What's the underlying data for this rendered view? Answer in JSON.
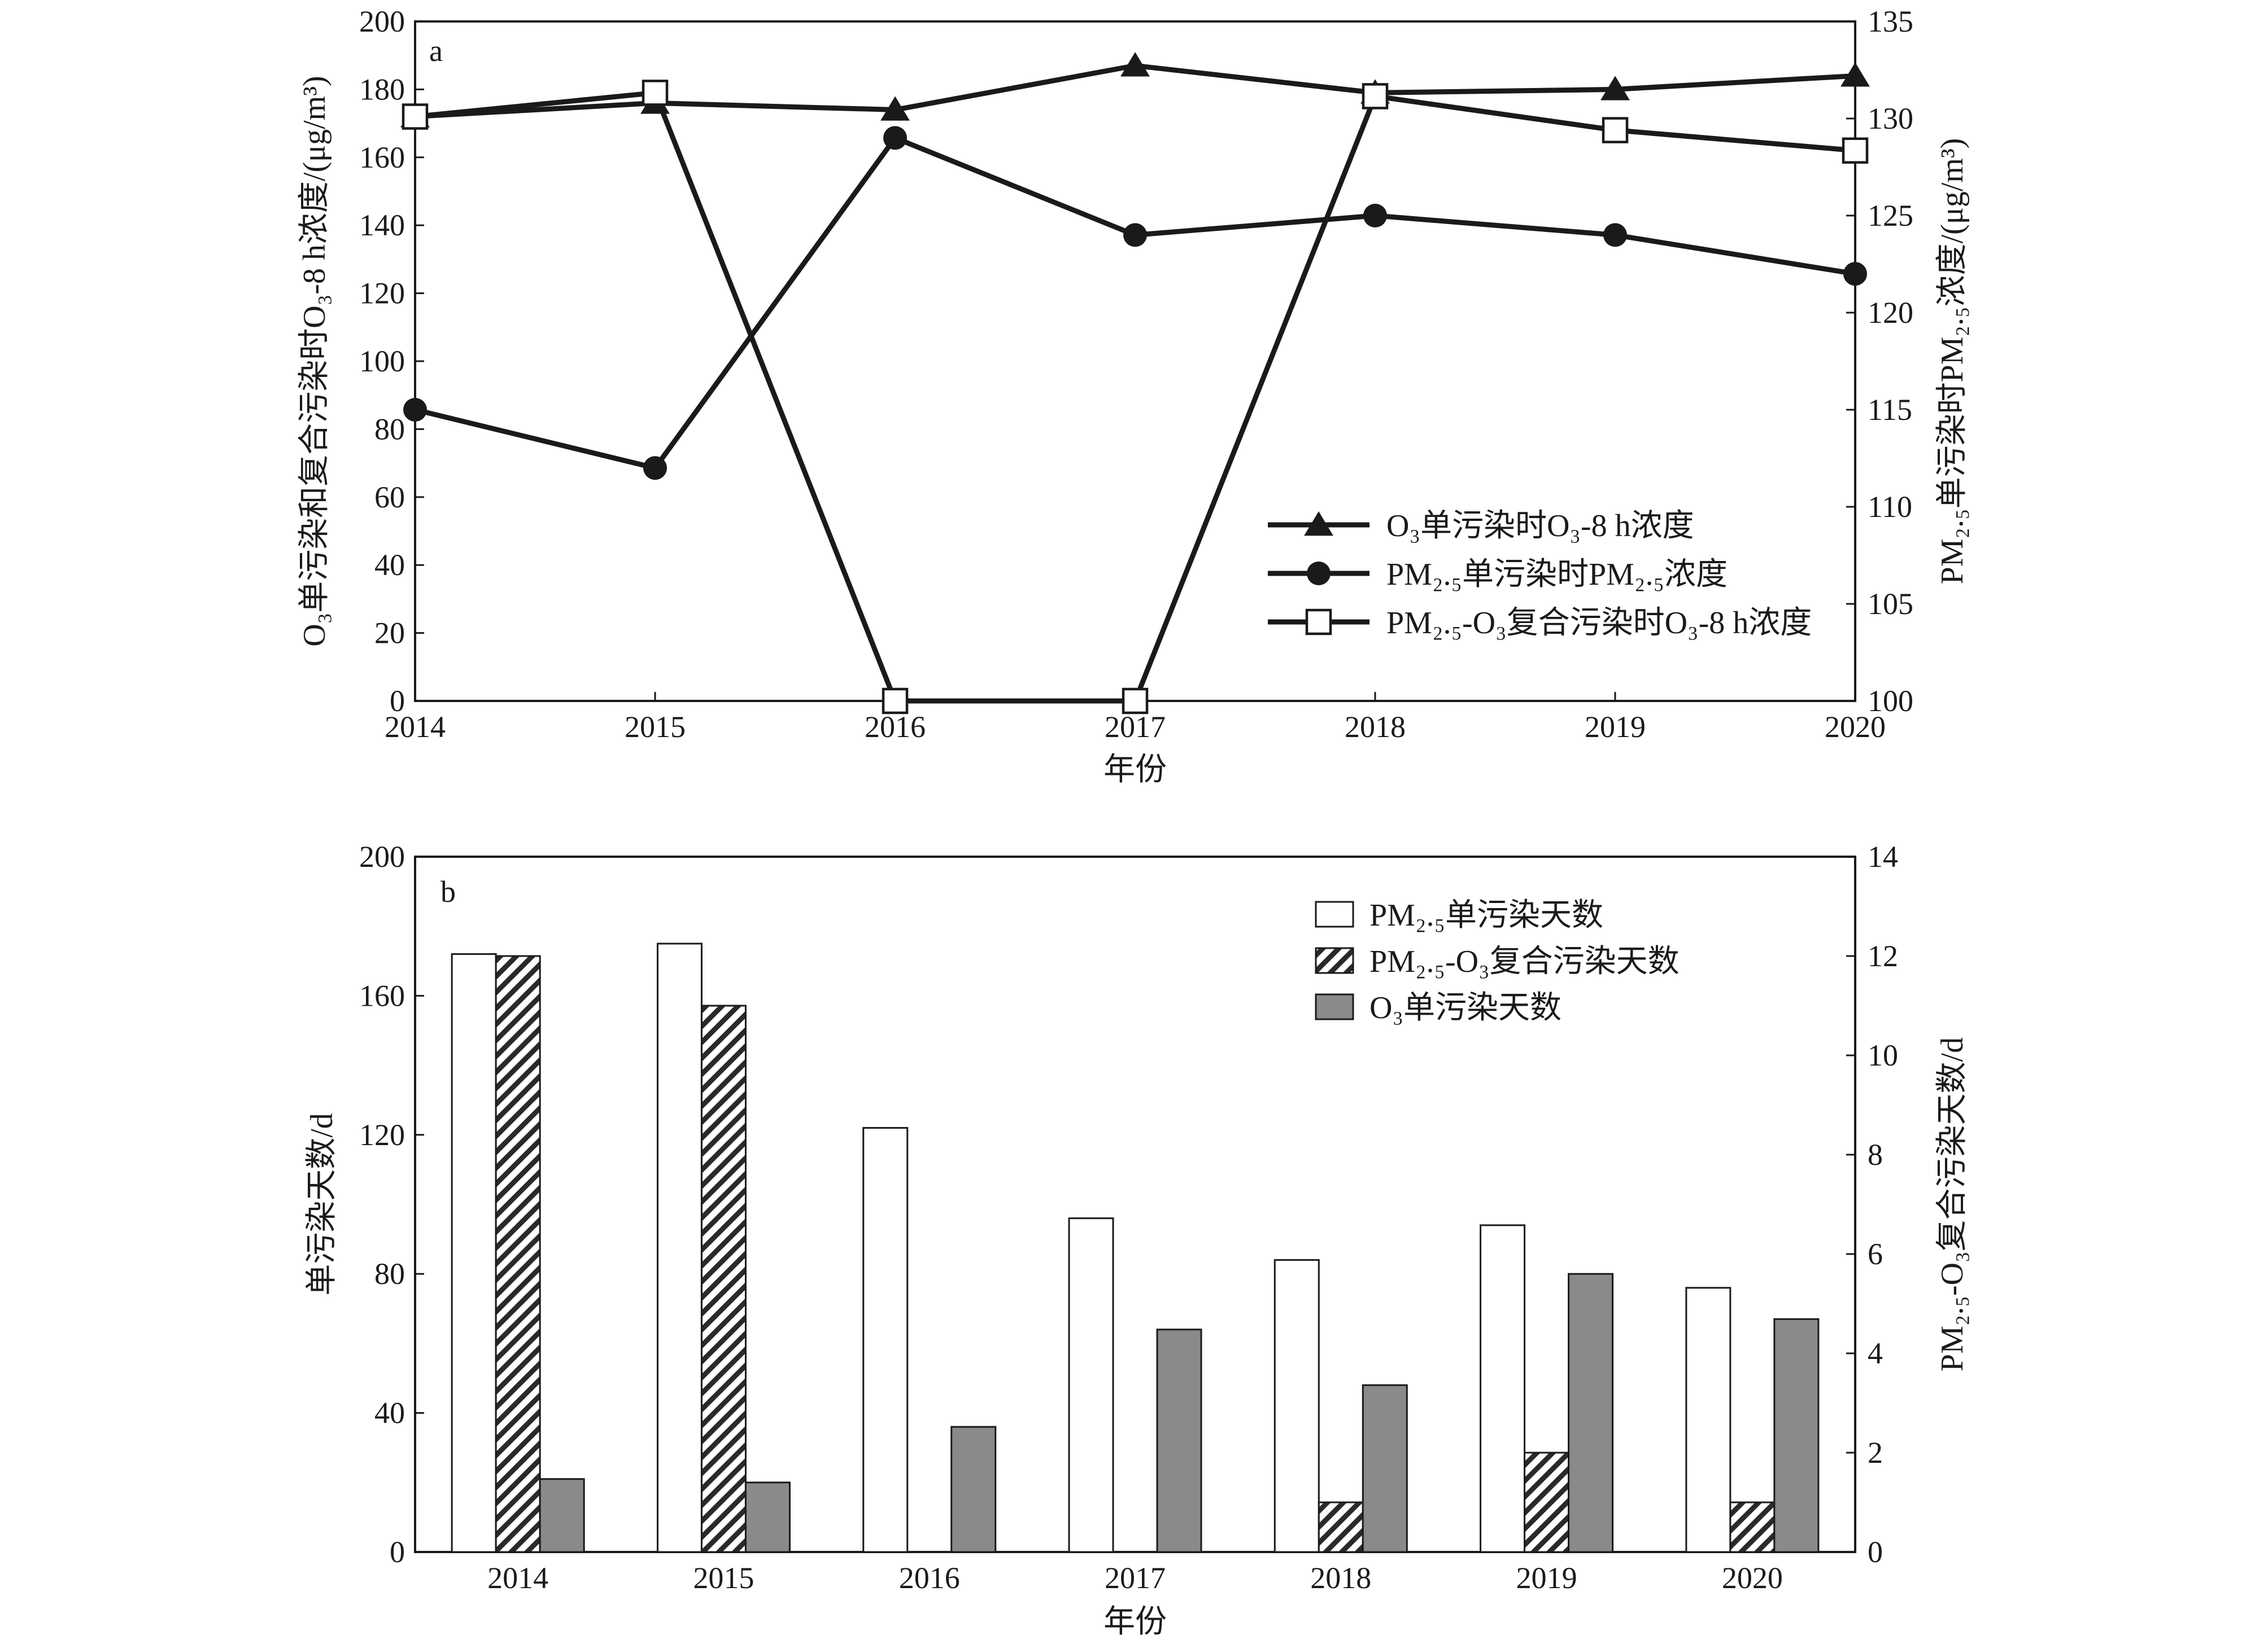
{
  "chart_data": [
    {
      "panel": "a",
      "type": "line",
      "xlabel": "年份",
      "ylabel_left": "O₃单污染和复合污染时O₃-8 h浓度/(μg/m³)",
      "ylabel_right": "PM₂.₅单污染时PM₂.₅浓度/(μg/m³)",
      "x": [
        2014,
        2015,
        2016,
        2017,
        2018,
        2019,
        2020
      ],
      "xlim": [
        2014,
        2020
      ],
      "ylim_left": [
        0,
        200
      ],
      "ylim_right": [
        100,
        135
      ],
      "yticks_left": [
        0,
        20,
        40,
        60,
        80,
        100,
        120,
        140,
        160,
        180,
        200
      ],
      "yticks_right": [
        100,
        105,
        110,
        115,
        120,
        125,
        130,
        135
      ],
      "series": [
        {
          "name": "O₃单污染时O₃-8 h浓度",
          "axis": "left",
          "marker": "triangle",
          "values": [
            172,
            176,
            174,
            187,
            179,
            180,
            184
          ]
        },
        {
          "name": "PM₂.₅单污染时PM₂.₅浓度",
          "axis": "right",
          "marker": "circle",
          "values": [
            115,
            112,
            129,
            124,
            125,
            124,
            122
          ]
        },
        {
          "name": "PM₂.₅-O₃复合污染时O₃-8 h浓度",
          "axis": "left",
          "marker": "open-square",
          "values": [
            172,
            179,
            0,
            0,
            178,
            168,
            162
          ]
        }
      ],
      "legend_position": "lower-right",
      "grid": false
    },
    {
      "panel": "b",
      "type": "bar",
      "xlabel": "年份",
      "ylabel_left": "单污染天数/d",
      "ylabel_right": "PM₂.₅-O₃复合污染天数/d",
      "categories": [
        "2014",
        "2015",
        "2016",
        "2017",
        "2018",
        "2019",
        "2020"
      ],
      "ylim_left": [
        0,
        200
      ],
      "ylim_right": [
        0,
        14
      ],
      "yticks_left": [
        0,
        40,
        80,
        120,
        160,
        200
      ],
      "yticks_right": [
        0,
        2,
        4,
        6,
        8,
        10,
        12,
        14
      ],
      "series": [
        {
          "name": "PM₂.₅单污染天数",
          "axis": "left",
          "fill": "white",
          "values": [
            172,
            175,
            122,
            96,
            84,
            94,
            76
          ]
        },
        {
          "name": "PM₂.₅-O₃复合污染天数",
          "axis": "right",
          "fill": "hatched",
          "values": [
            12,
            11,
            0,
            0,
            1,
            2,
            1
          ]
        },
        {
          "name": "O₃单污染天数",
          "axis": "left",
          "fill": "gray",
          "values": [
            21,
            20,
            36,
            64,
            48,
            80,
            67
          ]
        }
      ],
      "legend_position": "top-right",
      "grid": false
    }
  ]
}
